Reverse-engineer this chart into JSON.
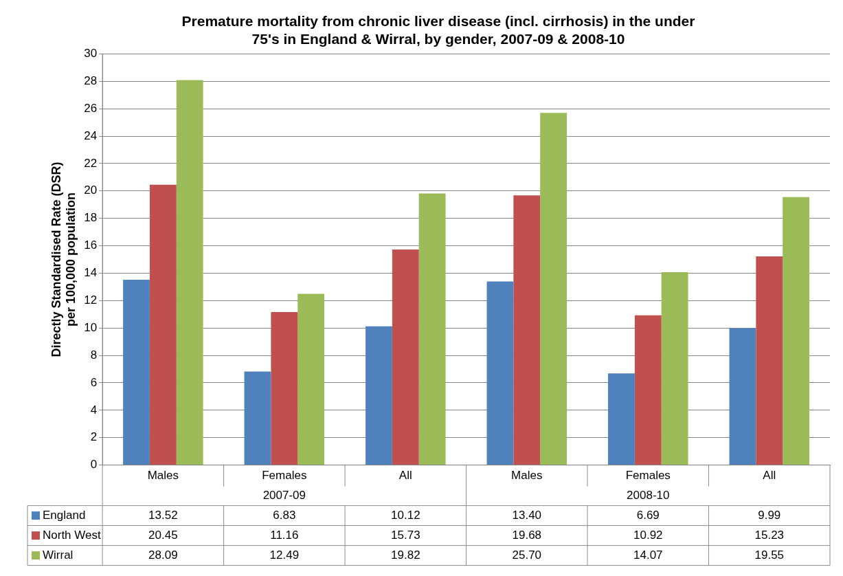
{
  "chart_data": {
    "type": "bar",
    "title": "Premature mortality from chronic liver disease (incl. cirrhosis) in the under 75's in England & Wirral, by gender, 2007-09 & 2008-10",
    "ylabel": "Directly Standardised Rate (DSR) per 100,000 population",
    "categories": [
      "Males",
      "Females",
      "All",
      "Males",
      "Females",
      "All"
    ],
    "annotations": [
      "2007-09",
      "2008-10"
    ],
    "series": [
      {
        "name": "England",
        "color": "#4f81bd",
        "values": [
          13.52,
          6.83,
          10.12,
          13.4,
          6.69,
          9.99
        ],
        "value_labels": [
          "13.52",
          "6.83",
          "10.12",
          "13.40",
          "6.69",
          "9.99"
        ]
      },
      {
        "name": "North West",
        "color": "#c0504d",
        "values": [
          20.45,
          11.16,
          15.73,
          19.68,
          10.92,
          15.23
        ],
        "value_labels": [
          "20.45",
          "11.16",
          "15.73",
          "19.68",
          "10.92",
          "15.23"
        ]
      },
      {
        "name": "Wirral",
        "color": "#9bbb59",
        "values": [
          28.09,
          12.49,
          19.82,
          25.7,
          14.07,
          19.55
        ],
        "value_labels": [
          "28.09",
          "12.49",
          "19.82",
          "25.70",
          "14.07",
          "19.55"
        ]
      }
    ],
    "ylim": [
      0,
      30
    ],
    "yticks": [
      0,
      2,
      4,
      6,
      8,
      10,
      12,
      14,
      16,
      18,
      20,
      22,
      24,
      26,
      28,
      30
    ],
    "grid": "y",
    "legend": "bottom"
  }
}
